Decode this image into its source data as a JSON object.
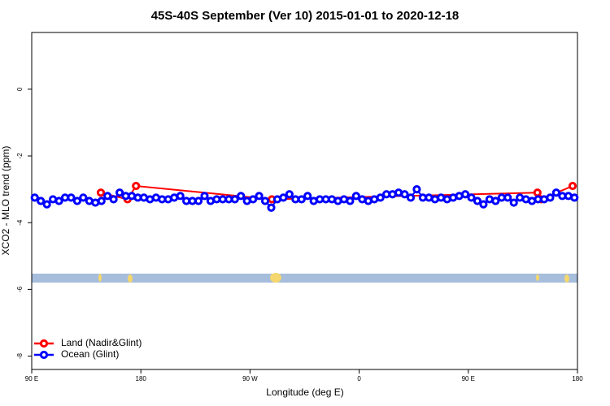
{
  "chart_data": {
    "type": "line",
    "title": "45S-40S September (Ver 10)   2015-01-01 to 2020-12-18",
    "xlabel": "Longitude (deg E)",
    "ylabel": "XCO2 - MLO trend (ppm)",
    "xlim": [
      90,
      540
    ],
    "xticks": [
      {
        "value": 90,
        "label": "90 E"
      },
      180,
      {
        "value": 270,
        "label": "90 W"
      },
      {
        "value": 360,
        "label": "0"
      },
      {
        "value": 450,
        "label": "90 E"
      },
      {
        "value": 540,
        "label": "180"
      }
    ],
    "ylim": [
      -8.4,
      1.7
    ],
    "yticks": [
      0,
      -2,
      -4,
      -6,
      -8
    ],
    "legend": "bottom-left",
    "series": [
      {
        "name": "Land (Nadir&Glint)",
        "color": "#ff0000",
        "x": [
          147,
          169,
          176,
          288,
          507,
          510,
          536
        ],
        "values": [
          -3.1,
          -3.3,
          -2.9,
          -3.3,
          -3.1,
          -3.3,
          -2.9
        ]
      },
      {
        "name": "Ocean (Glint)",
        "color": "#0000ff",
        "x": [
          92.5,
          97.5,
          102.5,
          107.5,
          112.5,
          117.5,
          122.5,
          127.5,
          132.5,
          137.5,
          142.5,
          147.5,
          152.5,
          157.5,
          162.5,
          167.5,
          172.5,
          177.5,
          182.5,
          187.5,
          192.5,
          197.5,
          202.5,
          207.5,
          212.5,
          217.5,
          222.5,
          227.5,
          232.5,
          237.5,
          242.5,
          247.5,
          252.5,
          257.5,
          262.5,
          267.5,
          272.5,
          277.5,
          282.5,
          287.5,
          292.5,
          297.5,
          302.5,
          307.5,
          312.5,
          317.5,
          322.5,
          327.5,
          332.5,
          337.5,
          342.5,
          347.5,
          352.5,
          357.5,
          362.5,
          367.5,
          372.5,
          377.5,
          382.5,
          387.5,
          392.5,
          397.5,
          402.5,
          407.5,
          412.5,
          417.5,
          422.5,
          427.5,
          432.5,
          437.5,
          442.5,
          447.5,
          452.5,
          457.5,
          462.5,
          467.5,
          472.5,
          477.5,
          482.5,
          487.5,
          492.5,
          497.5,
          502.5,
          507.5,
          512.5,
          517.5,
          522.5,
          527.5,
          532.5,
          537.5
        ],
        "values": [
          -3.25,
          -3.35,
          -3.45,
          -3.3,
          -3.35,
          -3.25,
          -3.25,
          -3.35,
          -3.25,
          -3.35,
          -3.4,
          -3.35,
          -3.2,
          -3.3,
          -3.1,
          -3.2,
          -3.2,
          -3.25,
          -3.25,
          -3.3,
          -3.25,
          -3.3,
          -3.3,
          -3.25,
          -3.2,
          -3.35,
          -3.35,
          -3.35,
          -3.2,
          -3.35,
          -3.3,
          -3.3,
          -3.3,
          -3.3,
          -3.2,
          -3.35,
          -3.3,
          -3.2,
          -3.35,
          -3.55,
          -3.3,
          -3.25,
          -3.15,
          -3.3,
          -3.3,
          -3.2,
          -3.35,
          -3.3,
          -3.3,
          -3.3,
          -3.35,
          -3.3,
          -3.35,
          -3.2,
          -3.3,
          -3.35,
          -3.3,
          -3.25,
          -3.15,
          -3.15,
          -3.1,
          -3.15,
          -3.25,
          -3.0,
          -3.25,
          -3.25,
          -3.3,
          -3.25,
          -3.3,
          -3.25,
          -3.2,
          -3.15,
          -3.25,
          -3.35,
          -3.45,
          -3.3,
          -3.35,
          -3.25,
          -3.25,
          -3.4,
          -3.25,
          -3.3,
          -3.35,
          -3.3,
          -3.3,
          -3.25,
          -3.1,
          -3.2,
          -3.2,
          -3.25
        ]
      }
    ]
  }
}
